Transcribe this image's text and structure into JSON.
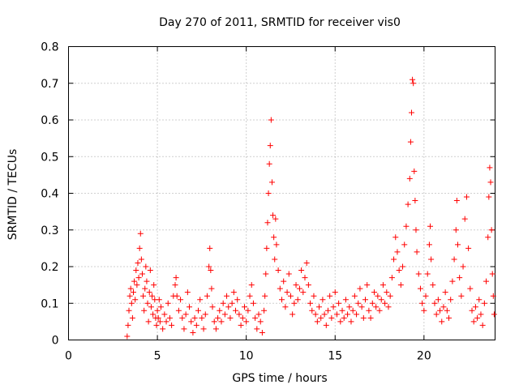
{
  "chart_data": {
    "type": "scatter",
    "title": "Day 270 of 2011, SRMTID for receiver vis0",
    "xlabel": "GPS time / hours",
    "ylabel": "SRMTID / TECUs",
    "xlim": [
      0,
      24
    ],
    "ylim": [
      0,
      0.8
    ],
    "x_ticks": [
      0,
      5,
      10,
      15,
      20
    ],
    "y_ticks": [
      0,
      0.1,
      0.2,
      0.3,
      0.4,
      0.5,
      0.6,
      0.7,
      0.8
    ],
    "x_tick_labels": [
      "0",
      "5",
      "10",
      "15",
      "20"
    ],
    "y_tick_labels": [
      "0",
      "0.1",
      "0.2",
      "0.3",
      "0.4",
      "0.5",
      "0.6",
      "0.7",
      "0.8"
    ],
    "grid": true,
    "marker": "+",
    "color": "#ff0000",
    "series": [
      {
        "name": "vis0",
        "points": [
          [
            3.3,
            0.01
          ],
          [
            3.35,
            0.04
          ],
          [
            3.4,
            0.08
          ],
          [
            3.45,
            0.12
          ],
          [
            3.5,
            0.14
          ],
          [
            3.55,
            0.1
          ],
          [
            3.6,
            0.06
          ],
          [
            3.65,
            0.13
          ],
          [
            3.7,
            0.16
          ],
          [
            3.75,
            0.11
          ],
          [
            3.8,
            0.19
          ],
          [
            3.85,
            0.15
          ],
          [
            3.9,
            0.21
          ],
          [
            3.95,
            0.17
          ],
          [
            4.0,
            0.25
          ],
          [
            4.05,
            0.29
          ],
          [
            4.1,
            0.22
          ],
          [
            4.15,
            0.18
          ],
          [
            4.2,
            0.12
          ],
          [
            4.25,
            0.08
          ],
          [
            4.3,
            0.14
          ],
          [
            4.35,
            0.2
          ],
          [
            4.4,
            0.16
          ],
          [
            4.45,
            0.1
          ],
          [
            4.5,
            0.05
          ],
          [
            4.55,
            0.13
          ],
          [
            4.6,
            0.19
          ],
          [
            4.65,
            0.09
          ],
          [
            4.7,
            0.12
          ],
          [
            4.75,
            0.07
          ],
          [
            4.8,
            0.15
          ],
          [
            4.85,
            0.11
          ],
          [
            4.9,
            0.06
          ],
          [
            4.95,
            0.04
          ],
          [
            5.0,
            0.08
          ],
          [
            5.05,
            0.06
          ],
          [
            5.1,
            0.11
          ],
          [
            5.15,
            0.05
          ],
          [
            5.2,
            0.09
          ],
          [
            5.3,
            0.03
          ],
          [
            5.4,
            0.07
          ],
          [
            5.5,
            0.05
          ],
          [
            5.6,
            0.1
          ],
          [
            5.7,
            0.06
          ],
          [
            5.8,
            0.04
          ],
          [
            5.9,
            0.12
          ],
          [
            6.0,
            0.15
          ],
          [
            6.05,
            0.17
          ],
          [
            6.1,
            0.12
          ],
          [
            6.2,
            0.08
          ],
          [
            6.3,
            0.11
          ],
          [
            6.4,
            0.06
          ],
          [
            6.5,
            0.03
          ],
          [
            6.6,
            0.07
          ],
          [
            6.7,
            0.13
          ],
          [
            6.8,
            0.09
          ],
          [
            6.9,
            0.05
          ],
          [
            7.0,
            0.02
          ],
          [
            7.1,
            0.06
          ],
          [
            7.2,
            0.04
          ],
          [
            7.3,
            0.08
          ],
          [
            7.4,
            0.11
          ],
          [
            7.5,
            0.06
          ],
          [
            7.6,
            0.03
          ],
          [
            7.7,
            0.07
          ],
          [
            7.8,
            0.12
          ],
          [
            7.9,
            0.2
          ],
          [
            7.95,
            0.25
          ],
          [
            8.0,
            0.19
          ],
          [
            8.05,
            0.14
          ],
          [
            8.1,
            0.09
          ],
          [
            8.2,
            0.05
          ],
          [
            8.3,
            0.03
          ],
          [
            8.4,
            0.06
          ],
          [
            8.5,
            0.08
          ],
          [
            8.6,
            0.05
          ],
          [
            8.7,
            0.1
          ],
          [
            8.8,
            0.07
          ],
          [
            8.9,
            0.12
          ],
          [
            9.0,
            0.09
          ],
          [
            9.1,
            0.06
          ],
          [
            9.2,
            0.1
          ],
          [
            9.3,
            0.13
          ],
          [
            9.4,
            0.08
          ],
          [
            9.5,
            0.11
          ],
          [
            9.6,
            0.07
          ],
          [
            9.7,
            0.04
          ],
          [
            9.8,
            0.06
          ],
          [
            9.9,
            0.09
          ],
          [
            10.0,
            0.05
          ],
          [
            10.1,
            0.08
          ],
          [
            10.2,
            0.12
          ],
          [
            10.3,
            0.15
          ],
          [
            10.4,
            0.1
          ],
          [
            10.5,
            0.06
          ],
          [
            10.6,
            0.03
          ],
          [
            10.7,
            0.07
          ],
          [
            10.8,
            0.05
          ],
          [
            10.9,
            0.02
          ],
          [
            11.0,
            0.08
          ],
          [
            11.05,
            0.12
          ],
          [
            11.1,
            0.18
          ],
          [
            11.15,
            0.25
          ],
          [
            11.2,
            0.32
          ],
          [
            11.25,
            0.4
          ],
          [
            11.3,
            0.48
          ],
          [
            11.35,
            0.53
          ],
          [
            11.4,
            0.6
          ],
          [
            11.45,
            0.43
          ],
          [
            11.5,
            0.34
          ],
          [
            11.55,
            0.28
          ],
          [
            11.6,
            0.22
          ],
          [
            11.65,
            0.33
          ],
          [
            11.7,
            0.26
          ],
          [
            11.8,
            0.19
          ],
          [
            11.9,
            0.14
          ],
          [
            12.0,
            0.11
          ],
          [
            12.1,
            0.16
          ],
          [
            12.2,
            0.09
          ],
          [
            12.3,
            0.13
          ],
          [
            12.4,
            0.18
          ],
          [
            12.5,
            0.12
          ],
          [
            12.6,
            0.07
          ],
          [
            12.7,
            0.1
          ],
          [
            12.8,
            0.15
          ],
          [
            12.9,
            0.11
          ],
          [
            13.0,
            0.14
          ],
          [
            13.1,
            0.19
          ],
          [
            13.2,
            0.13
          ],
          [
            13.3,
            0.17
          ],
          [
            13.4,
            0.21
          ],
          [
            13.5,
            0.15
          ],
          [
            13.6,
            0.1
          ],
          [
            13.7,
            0.08
          ],
          [
            13.8,
            0.12
          ],
          [
            13.9,
            0.07
          ],
          [
            14.0,
            0.05
          ],
          [
            14.1,
            0.09
          ],
          [
            14.2,
            0.06
          ],
          [
            14.3,
            0.11
          ],
          [
            14.4,
            0.07
          ],
          [
            14.5,
            0.04
          ],
          [
            14.6,
            0.08
          ],
          [
            14.7,
            0.12
          ],
          [
            14.8,
            0.06
          ],
          [
            14.9,
            0.09
          ],
          [
            15.0,
            0.13
          ],
          [
            15.1,
            0.07
          ],
          [
            15.2,
            0.1
          ],
          [
            15.3,
            0.05
          ],
          [
            15.4,
            0.08
          ],
          [
            15.5,
            0.06
          ],
          [
            15.6,
            0.11
          ],
          [
            15.7,
            0.07
          ],
          [
            15.8,
            0.09
          ],
          [
            15.9,
            0.05
          ],
          [
            16.0,
            0.08
          ],
          [
            16.1,
            0.12
          ],
          [
            16.2,
            0.07
          ],
          [
            16.3,
            0.1
          ],
          [
            16.4,
            0.14
          ],
          [
            16.5,
            0.09
          ],
          [
            16.6,
            0.06
          ],
          [
            16.7,
            0.11
          ],
          [
            16.8,
            0.15
          ],
          [
            16.9,
            0.08
          ],
          [
            17.0,
            0.06
          ],
          [
            17.1,
            0.1
          ],
          [
            17.2,
            0.13
          ],
          [
            17.3,
            0.09
          ],
          [
            17.4,
            0.12
          ],
          [
            17.5,
            0.08
          ],
          [
            17.6,
            0.11
          ],
          [
            17.7,
            0.15
          ],
          [
            17.8,
            0.1
          ],
          [
            17.9,
            0.13
          ],
          [
            18.0,
            0.09
          ],
          [
            18.1,
            0.12
          ],
          [
            18.2,
            0.17
          ],
          [
            18.3,
            0.22
          ],
          [
            18.4,
            0.28
          ],
          [
            18.5,
            0.24
          ],
          [
            18.6,
            0.19
          ],
          [
            18.7,
            0.15
          ],
          [
            18.8,
            0.2
          ],
          [
            18.9,
            0.26
          ],
          [
            19.0,
            0.31
          ],
          [
            19.1,
            0.37
          ],
          [
            19.2,
            0.44
          ],
          [
            19.25,
            0.54
          ],
          [
            19.3,
            0.62
          ],
          [
            19.35,
            0.71
          ],
          [
            19.4,
            0.7
          ],
          [
            19.45,
            0.46
          ],
          [
            19.5,
            0.38
          ],
          [
            19.55,
            0.3
          ],
          [
            19.6,
            0.24
          ],
          [
            19.7,
            0.18
          ],
          [
            19.8,
            0.14
          ],
          [
            19.9,
            0.1
          ],
          [
            20.0,
            0.08
          ],
          [
            20.1,
            0.12
          ],
          [
            20.2,
            0.18
          ],
          [
            20.3,
            0.26
          ],
          [
            20.35,
            0.31
          ],
          [
            20.4,
            0.22
          ],
          [
            20.5,
            0.15
          ],
          [
            20.6,
            0.1
          ],
          [
            20.7,
            0.07
          ],
          [
            20.8,
            0.11
          ],
          [
            20.9,
            0.08
          ],
          [
            21.0,
            0.05
          ],
          [
            21.1,
            0.09
          ],
          [
            21.2,
            0.13
          ],
          [
            21.3,
            0.08
          ],
          [
            21.4,
            0.06
          ],
          [
            21.5,
            0.11
          ],
          [
            21.6,
            0.16
          ],
          [
            21.7,
            0.22
          ],
          [
            21.8,
            0.3
          ],
          [
            21.85,
            0.38
          ],
          [
            21.9,
            0.26
          ],
          [
            22.0,
            0.17
          ],
          [
            22.1,
            0.12
          ],
          [
            22.2,
            0.2
          ],
          [
            22.3,
            0.33
          ],
          [
            22.4,
            0.39
          ],
          [
            22.5,
            0.25
          ],
          [
            22.6,
            0.14
          ],
          [
            22.7,
            0.08
          ],
          [
            22.8,
            0.05
          ],
          [
            22.9,
            0.09
          ],
          [
            23.0,
            0.06
          ],
          [
            23.1,
            0.11
          ],
          [
            23.2,
            0.07
          ],
          [
            23.3,
            0.04
          ],
          [
            23.4,
            0.1
          ],
          [
            23.5,
            0.16
          ],
          [
            23.6,
            0.28
          ],
          [
            23.65,
            0.39
          ],
          [
            23.7,
            0.47
          ],
          [
            23.75,
            0.43
          ],
          [
            23.8,
            0.3
          ],
          [
            23.85,
            0.18
          ],
          [
            23.9,
            0.12
          ],
          [
            23.95,
            0.07
          ]
        ]
      }
    ]
  }
}
